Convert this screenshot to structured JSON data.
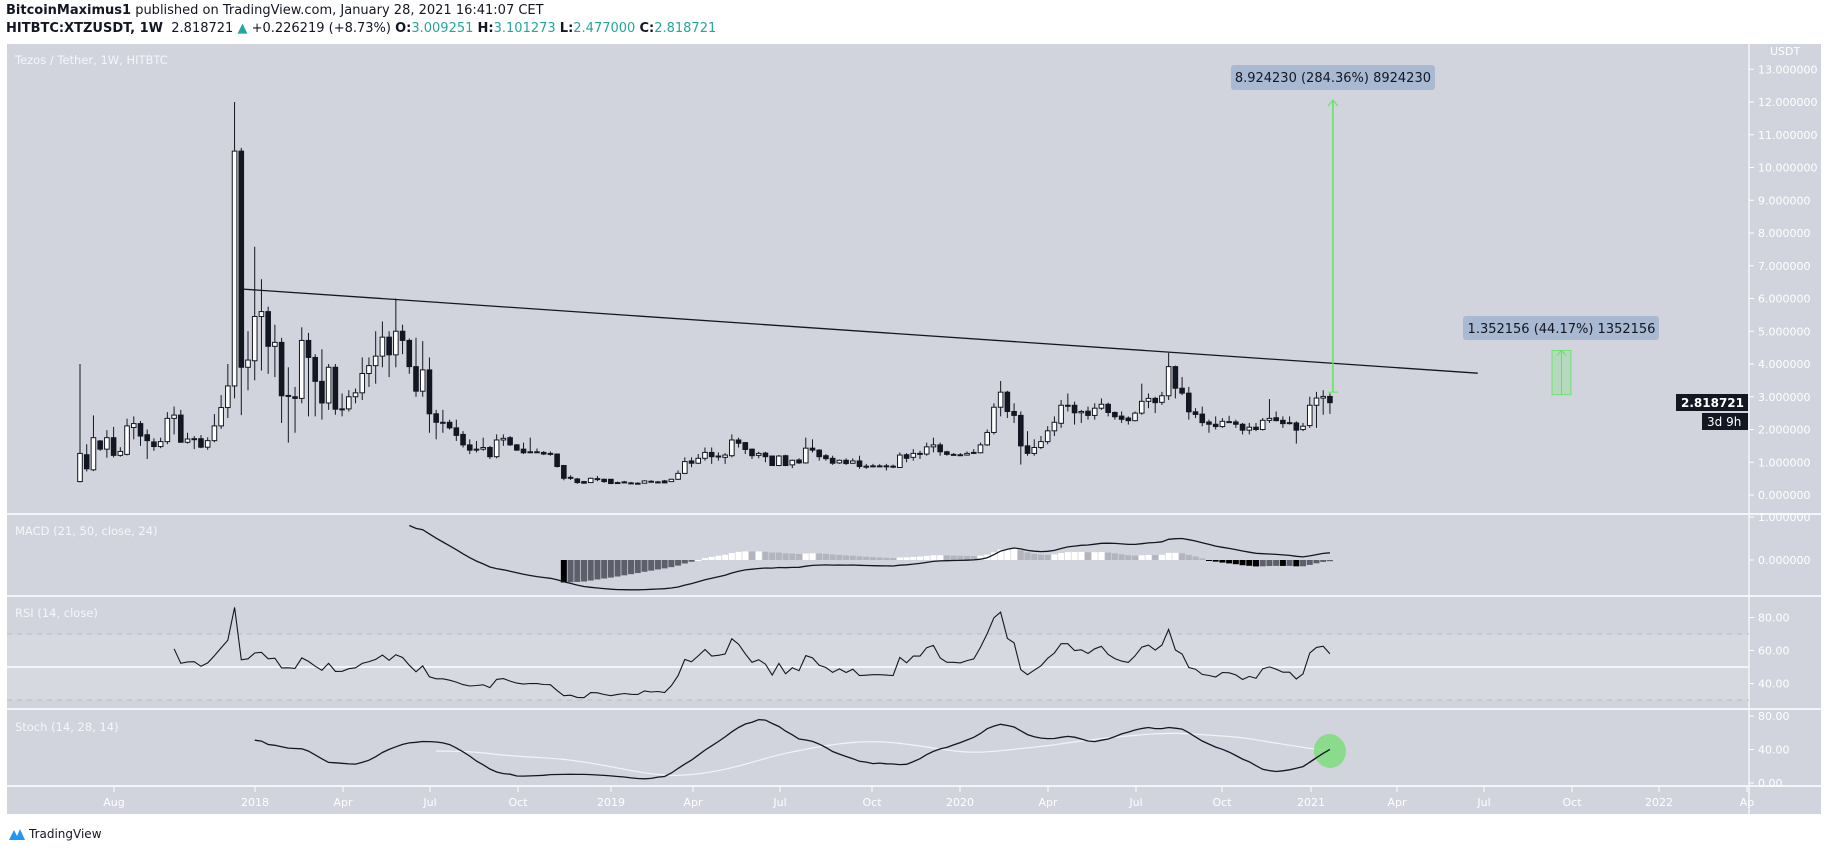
{
  "header": {
    "author": "BitcoinMaximus1",
    "published": " published on TradingView.com, January 28, 2021 16:41:07 CET",
    "symbol": "HITBTC:XTZUSDT, 1W",
    "last": "2.818721",
    "change": "+0.226219 (+8.73%)",
    "o_label": "O:",
    "o": "3.009251",
    "h_label": "H:",
    "h": "3.101273",
    "l_label": "L:",
    "l": "2.477000",
    "c_label": "C:",
    "c": "2.818721",
    "up_color": "#26a69a"
  },
  "logo": {
    "text": "TradingView"
  },
  "chart_data": {
    "type": "candlestick",
    "title": "Tezos / Tether, 1W, HITBTC",
    "currency": "USDT",
    "interval": "1W",
    "ylim": [
      0,
      13
    ],
    "y_ticks": [
      "0.000000",
      "1.000000",
      "2.000000",
      "3.000000",
      "4.000000",
      "5.000000",
      "6.000000",
      "7.000000",
      "8.000000",
      "9.000000",
      "10.000000",
      "11.000000",
      "12.000000",
      "13.000000"
    ],
    "x_ticks": [
      "Aug",
      "2018",
      "Apr",
      "Jul",
      "Oct",
      "2019",
      "Apr",
      "Jul",
      "Oct",
      "2020",
      "Apr",
      "Jul",
      "Oct",
      "2021",
      "Apr",
      "Jul",
      "Oct",
      "2022",
      "Ap"
    ],
    "last_price_label": "2.818721",
    "countdown": "3d 9h",
    "colors": {
      "background": "#d1d4dc",
      "up": "#ffffff",
      "down": "#131722",
      "measure": "#5ee65e"
    },
    "ohlc": [
      [
        0.41,
        4.0,
        0.38,
        1.27
      ],
      [
        1.23,
        1.55,
        0.72,
        0.8
      ],
      [
        0.77,
        2.43,
        0.73,
        1.75
      ],
      [
        1.65,
        1.68,
        1.35,
        1.4
      ],
      [
        1.4,
        1.98,
        1.14,
        1.75
      ],
      [
        1.75,
        2.08,
        1.15,
        1.21
      ],
      [
        1.21,
        1.46,
        1.17,
        1.33
      ],
      [
        1.24,
        2.33,
        1.21,
        2.11
      ],
      [
        2.06,
        2.4,
        1.7,
        2.18
      ],
      [
        2.18,
        2.26,
        1.5,
        1.8
      ],
      [
        1.84,
        2.0,
        1.1,
        1.66
      ],
      [
        1.62,
        1.73,
        1.35,
        1.48
      ],
      [
        1.48,
        1.75,
        1.43,
        1.63
      ],
      [
        1.63,
        2.53,
        1.55,
        2.34
      ],
      [
        2.34,
        2.7,
        1.85,
        2.44
      ],
      [
        2.44,
        2.6,
        1.6,
        1.61
      ],
      [
        1.61,
        1.9,
        1.57,
        1.71
      ],
      [
        1.71,
        1.8,
        1.4,
        1.72
      ],
      [
        1.72,
        1.83,
        1.43,
        1.46
      ],
      [
        1.46,
        1.76,
        1.38,
        1.66
      ],
      [
        1.66,
        2.47,
        1.61,
        2.11
      ],
      [
        2.11,
        3.05,
        2.02,
        2.67
      ],
      [
        2.67,
        4.0,
        2.35,
        3.33
      ],
      [
        3.33,
        12.0,
        2.95,
        10.5
      ],
      [
        10.5,
        10.6,
        2.44,
        3.9
      ],
      [
        3.9,
        5.0,
        3.2,
        4.12
      ],
      [
        4.1,
        7.58,
        3.5,
        5.45
      ],
      [
        5.45,
        6.59,
        3.8,
        5.6
      ],
      [
        5.6,
        5.75,
        3.7,
        4.54
      ],
      [
        4.54,
        5.2,
        3.6,
        4.66
      ],
      [
        4.66,
        4.8,
        2.2,
        3.03
      ],
      [
        3.03,
        3.9,
        1.6,
        3.04
      ],
      [
        3.0,
        3.3,
        1.9,
        2.95
      ],
      [
        2.95,
        5.12,
        2.8,
        4.72
      ],
      [
        4.72,
        4.95,
        2.4,
        4.2
      ],
      [
        4.2,
        4.3,
        2.4,
        3.47
      ],
      [
        3.47,
        4.45,
        2.3,
        2.81
      ],
      [
        2.81,
        4.0,
        2.6,
        3.9
      ],
      [
        3.9,
        4.0,
        2.45,
        2.62
      ],
      [
        2.62,
        3.1,
        2.4,
        2.63
      ],
      [
        2.63,
        3.2,
        2.55,
        3.0
      ],
      [
        3.0,
        3.25,
        2.8,
        3.12
      ],
      [
        3.12,
        4.2,
        2.9,
        3.71
      ],
      [
        3.71,
        4.2,
        3.3,
        3.95
      ],
      [
        3.95,
        5.0,
        3.4,
        4.24
      ],
      [
        4.24,
        5.3,
        3.9,
        4.82
      ],
      [
        4.82,
        5.0,
        3.6,
        4.28
      ],
      [
        4.28,
        6.0,
        3.9,
        5.0
      ],
      [
        5.0,
        5.2,
        4.3,
        4.72
      ],
      [
        4.72,
        4.78,
        3.7,
        3.92
      ],
      [
        3.92,
        4.8,
        3.0,
        3.17
      ],
      [
        3.17,
        4.7,
        3.0,
        3.82
      ],
      [
        3.82,
        4.2,
        1.9,
        2.48
      ],
      [
        2.48,
        2.6,
        1.7,
        2.22
      ],
      [
        2.2,
        2.6,
        1.9,
        2.22
      ],
      [
        2.22,
        2.3,
        2.0,
        2.05
      ],
      [
        2.05,
        2.3,
        1.65,
        1.82
      ],
      [
        1.85,
        1.95,
        1.45,
        1.53
      ],
      [
        1.53,
        1.7,
        1.25,
        1.37
      ],
      [
        1.38,
        1.65,
        1.3,
        1.4
      ],
      [
        1.4,
        1.75,
        1.35,
        1.45
      ],
      [
        1.45,
        1.5,
        1.1,
        1.17
      ],
      [
        1.17,
        1.85,
        1.12,
        1.68
      ],
      [
        1.68,
        1.85,
        1.5,
        1.73
      ],
      [
        1.75,
        1.8,
        1.5,
        1.53
      ],
      [
        1.53,
        1.56,
        1.35,
        1.37
      ],
      [
        1.4,
        1.6,
        1.25,
        1.29
      ],
      [
        1.3,
        1.75,
        1.28,
        1.32
      ],
      [
        1.32,
        1.42,
        1.28,
        1.31
      ],
      [
        1.3,
        1.34,
        1.22,
        1.25
      ],
      [
        1.27,
        1.33,
        1.2,
        1.24
      ],
      [
        1.25,
        1.27,
        0.84,
        0.87
      ],
      [
        0.9,
        0.92,
        0.45,
        0.51
      ],
      [
        0.54,
        0.6,
        0.46,
        0.53
      ],
      [
        0.49,
        0.52,
        0.34,
        0.38
      ],
      [
        0.41,
        0.43,
        0.35,
        0.36
      ],
      [
        0.38,
        0.53,
        0.37,
        0.51
      ],
      [
        0.5,
        0.58,
        0.42,
        0.5
      ],
      [
        0.48,
        0.5,
        0.37,
        0.41
      ],
      [
        0.48,
        0.49,
        0.34,
        0.35
      ],
      [
        0.38,
        0.41,
        0.35,
        0.38
      ],
      [
        0.4,
        0.43,
        0.37,
        0.4
      ],
      [
        0.37,
        0.4,
        0.34,
        0.37
      ],
      [
        0.36,
        0.39,
        0.33,
        0.36
      ],
      [
        0.36,
        0.45,
        0.35,
        0.43
      ],
      [
        0.42,
        0.45,
        0.38,
        0.39
      ],
      [
        0.4,
        0.43,
        0.37,
        0.4
      ],
      [
        0.43,
        0.46,
        0.36,
        0.37
      ],
      [
        0.41,
        0.49,
        0.4,
        0.48
      ],
      [
        0.48,
        0.75,
        0.46,
        0.66
      ],
      [
        0.66,
        1.15,
        0.64,
        1.02
      ],
      [
        1.04,
        1.15,
        0.85,
        0.97
      ],
      [
        0.97,
        1.25,
        0.95,
        1.12
      ],
      [
        1.12,
        1.45,
        1.05,
        1.3
      ],
      [
        1.3,
        1.45,
        0.95,
        1.17
      ],
      [
        1.18,
        1.3,
        1.05,
        1.19
      ],
      [
        1.15,
        1.28,
        0.95,
        1.22
      ],
      [
        1.2,
        1.85,
        1.15,
        1.68
      ],
      [
        1.68,
        1.75,
        1.45,
        1.58
      ],
      [
        1.6,
        1.62,
        1.25,
        1.39
      ],
      [
        1.4,
        1.42,
        1.1,
        1.2
      ],
      [
        1.21,
        1.32,
        1.12,
        1.27
      ],
      [
        1.28,
        1.32,
        1.0,
        1.17
      ],
      [
        1.19,
        1.2,
        0.9,
        0.9
      ],
      [
        0.9,
        1.22,
        0.88,
        1.19
      ],
      [
        1.2,
        1.23,
        0.88,
        0.9
      ],
      [
        0.92,
        1.08,
        0.82,
        1.06
      ],
      [
        1.07,
        1.12,
        0.95,
        0.98
      ],
      [
        0.98,
        1.75,
        0.96,
        1.43
      ],
      [
        1.43,
        1.7,
        1.3,
        1.37
      ],
      [
        1.37,
        1.4,
        1.05,
        1.17
      ],
      [
        1.2,
        1.25,
        1.05,
        1.11
      ],
      [
        1.12,
        1.2,
        0.92,
        0.97
      ],
      [
        0.98,
        1.08,
        0.95,
        1.06
      ],
      [
        1.06,
        1.12,
        0.92,
        0.96
      ],
      [
        0.97,
        1.12,
        0.95,
        1.04
      ],
      [
        1.04,
        1.2,
        0.8,
        0.87
      ],
      [
        0.87,
        0.95,
        0.8,
        0.88
      ],
      [
        0.88,
        0.95,
        0.85,
        0.89
      ],
      [
        0.89,
        0.94,
        0.86,
        0.89
      ],
      [
        0.89,
        0.95,
        0.75,
        0.88
      ],
      [
        0.88,
        0.93,
        0.82,
        0.87
      ],
      [
        0.84,
        1.3,
        0.83,
        1.22
      ],
      [
        1.23,
        1.28,
        1.0,
        1.12
      ],
      [
        1.15,
        1.4,
        1.05,
        1.27
      ],
      [
        1.27,
        1.35,
        1.1,
        1.27
      ],
      [
        1.25,
        1.6,
        1.2,
        1.47
      ],
      [
        1.47,
        1.75,
        1.3,
        1.53
      ],
      [
        1.53,
        1.6,
        1.2,
        1.32
      ],
      [
        1.32,
        1.35,
        1.2,
        1.24
      ],
      [
        1.24,
        1.28,
        1.2,
        1.24
      ],
      [
        1.23,
        1.28,
        1.2,
        1.23
      ],
      [
        1.22,
        1.33,
        1.2,
        1.27
      ],
      [
        1.3,
        1.4,
        1.25,
        1.3
      ],
      [
        1.29,
        1.6,
        1.27,
        1.53
      ],
      [
        1.53,
        2.0,
        1.5,
        1.91
      ],
      [
        1.91,
        2.8,
        1.85,
        2.68
      ],
      [
        2.68,
        3.48,
        2.4,
        3.14
      ],
      [
        3.14,
        3.18,
        2.35,
        2.55
      ],
      [
        2.55,
        2.8,
        2.2,
        2.43
      ],
      [
        2.43,
        2.55,
        0.93,
        1.5
      ],
      [
        1.5,
        1.95,
        1.2,
        1.27
      ],
      [
        1.27,
        1.7,
        1.2,
        1.45
      ],
      [
        1.45,
        1.8,
        1.4,
        1.63
      ],
      [
        1.63,
        2.1,
        1.55,
        1.96
      ],
      [
        1.96,
        2.4,
        1.8,
        2.22
      ],
      [
        2.19,
        2.9,
        2.05,
        2.74
      ],
      [
        2.74,
        3.1,
        2.55,
        2.74
      ],
      [
        2.74,
        2.85,
        2.15,
        2.51
      ],
      [
        2.51,
        2.6,
        2.2,
        2.55
      ],
      [
        2.56,
        2.7,
        2.3,
        2.43
      ],
      [
        2.43,
        2.8,
        2.3,
        2.65
      ],
      [
        2.65,
        2.95,
        2.6,
        2.77
      ],
      [
        2.77,
        2.82,
        2.4,
        2.52
      ],
      [
        2.52,
        2.55,
        2.3,
        2.39
      ],
      [
        2.41,
        2.55,
        2.2,
        2.31
      ],
      [
        2.35,
        2.4,
        2.15,
        2.27
      ],
      [
        2.27,
        2.55,
        2.25,
        2.5
      ],
      [
        2.5,
        3.4,
        2.45,
        2.86
      ],
      [
        2.86,
        3.1,
        2.65,
        2.95
      ],
      [
        2.95,
        3.0,
        2.5,
        2.82
      ],
      [
        2.83,
        3.15,
        2.75,
        3.03
      ],
      [
        3.03,
        4.34,
        2.9,
        3.92
      ],
      [
        3.92,
        3.95,
        2.95,
        3.26
      ],
      [
        3.26,
        3.6,
        3.05,
        3.11
      ],
      [
        3.11,
        3.3,
        2.3,
        2.54
      ],
      [
        2.54,
        2.65,
        2.35,
        2.46
      ],
      [
        2.47,
        2.7,
        2.1,
        2.21
      ],
      [
        2.23,
        2.3,
        1.9,
        2.16
      ],
      [
        2.16,
        2.4,
        2.0,
        2.09
      ],
      [
        2.09,
        2.35,
        2.05,
        2.25
      ],
      [
        2.24,
        2.42,
        2.2,
        2.24
      ],
      [
        2.23,
        2.3,
        2.05,
        2.16
      ],
      [
        2.16,
        2.2,
        1.85,
        1.98
      ],
      [
        1.98,
        2.2,
        1.85,
        2.07
      ],
      [
        2.07,
        2.2,
        1.95,
        2.0
      ],
      [
        2.0,
        2.35,
        1.97,
        2.28
      ],
      [
        2.28,
        2.93,
        2.2,
        2.34
      ],
      [
        2.36,
        2.55,
        2.25,
        2.27
      ],
      [
        2.28,
        2.4,
        2.05,
        2.18
      ],
      [
        2.21,
        2.4,
        2.15,
        2.18
      ],
      [
        2.2,
        2.25,
        1.57,
        1.98
      ],
      [
        2.0,
        2.2,
        1.95,
        2.1
      ],
      [
        2.12,
        3.0,
        2.05,
        2.74
      ],
      [
        2.74,
        3.15,
        2.05,
        2.96
      ],
      [
        2.96,
        3.2,
        2.45,
        3.01
      ],
      [
        3.009251,
        3.101273,
        2.477,
        2.818721
      ]
    ],
    "trendline": {
      "from": {
        "bar": 24,
        "price": 6.29
      },
      "to": {
        "bar": 208,
        "price": 3.72
      }
    },
    "measurements": [
      {
        "label": "8.924230 (284.36%) 8924230",
        "from_price": 3.14,
        "to_price": 12.06,
        "style": "arrow"
      },
      {
        "label": "1.352156 (44.17%) 1352156",
        "from_price": 3.06,
        "to_price": 4.41,
        "style": "box"
      }
    ],
    "indicators": {
      "macd": {
        "title": "MACD (21, 50, close, 24)",
        "fast": 21,
        "slow": 50,
        "signal": 24,
        "ylim": [
          -0.8,
          1.0
        ],
        "y_ticks": [
          "1.000000",
          "0.000000"
        ]
      },
      "rsi": {
        "title": "RSI (14, close)",
        "length": 14,
        "bands": [
          70,
          50,
          30
        ],
        "y_ticks": [
          "80.00",
          "60.00",
          "40.00"
        ]
      },
      "stoch": {
        "title": "Stoch (14, 28, 14)",
        "k": 14,
        "k_smooth": 14,
        "d": 28,
        "y_ticks": [
          "80.00",
          "40.00",
          "0.00"
        ],
        "highlight": "#7fdc7f"
      }
    }
  }
}
